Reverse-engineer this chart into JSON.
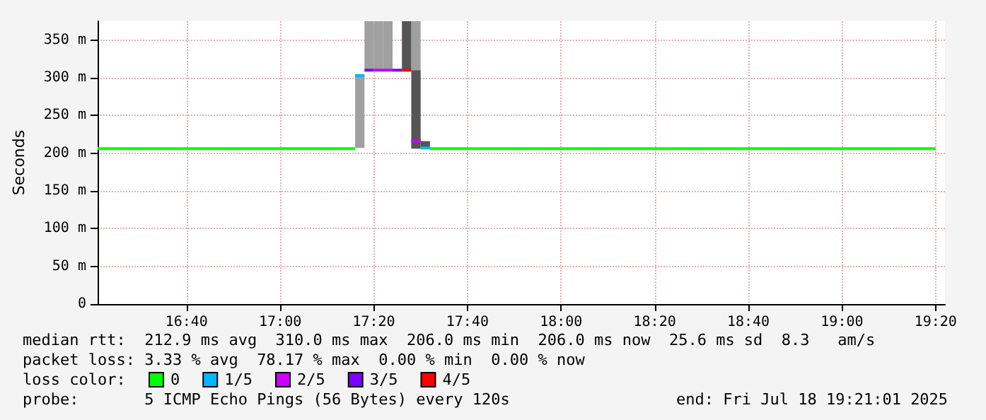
{
  "chart_data": {
    "type": "line",
    "ylabel": "Seconds",
    "legend_title": "loss color:",
    "legend": "bottom",
    "grid": true,
    "marker": "none",
    "xlim": [
      "2025-07-18T16:21",
      "2025-07-18T19:22"
    ],
    "xticks": [
      {
        "value": "2025-07-18T16:40",
        "label": "16:40"
      },
      {
        "value": "2025-07-18T17:00",
        "label": "17:00"
      },
      {
        "value": "2025-07-18T17:20",
        "label": "17:20"
      },
      {
        "value": "2025-07-18T17:40",
        "label": "17:40"
      },
      {
        "value": "2025-07-18T18:00",
        "label": "18:00"
      },
      {
        "value": "2025-07-18T18:20",
        "label": "18:20"
      },
      {
        "value": "2025-07-18T18:40",
        "label": "18:40"
      },
      {
        "value": "2025-07-18T19:00",
        "label": "19:00"
      },
      {
        "value": "2025-07-18T19:20",
        "label": "19:20"
      }
    ],
    "ylim": [
      0,
      375
    ],
    "yticks": [
      0,
      {
        "value": 50,
        "label": "50 m"
      },
      {
        "value": 100,
        "label": "100 m"
      },
      {
        "value": 150,
        "label": "150 m"
      },
      {
        "value": 200,
        "label": "200 m"
      },
      {
        "value": 250,
        "label": "250 m"
      },
      {
        "value": 300,
        "label": "300 m"
      },
      {
        "value": 350,
        "label": "350 m"
      }
    ],
    "series": [
      {
        "type": "bar",
        "color": "#a0a0a0",
        "x": [
          "2025-07-18T17:17",
          "2025-07-18T17:19",
          "2025-07-18T17:21",
          "2025-07-18T17:23",
          "2025-07-18T17:29"
        ],
        "base": [
          207,
          310,
          310,
          310,
          310
        ],
        "values": [
          96,
          65,
          65,
          65,
          65
        ]
      },
      {
        "type": "bar",
        "color": "#555555",
        "x": [
          "2025-07-18T17:27",
          "2025-07-18T17:29",
          "2025-07-18T17:31"
        ],
        "base": [
          310,
          206,
          206
        ],
        "values": [
          65,
          104,
          10
        ]
      },
      {
        "name": "0",
        "color": "#00ff00",
        "x": [
          "2025-07-18T16:21",
          "2025-07-18T17:16",
          "2025-07-18T17:24",
          "2025-07-18T17:32",
          "2025-07-18T19:20"
        ],
        "values": [
          206,
          206,
          null,
          206,
          206
        ]
      },
      {
        "name": "1/5",
        "color": "#00b8ff",
        "x": [
          "2025-07-18T17:16",
          "2025-07-18T17:18",
          "2025-07-18T17:24",
          "2025-07-18T17:30",
          "2025-07-18T17:32"
        ],
        "values": [
          303,
          303,
          null,
          207,
          207
        ]
      },
      {
        "name": "2/5",
        "color": "#cc00ff",
        "x": [
          "2025-07-18T17:20",
          "2025-07-18T17:24",
          "2025-07-18T17:26",
          "2025-07-18T17:28",
          "2025-07-18T17:30"
        ],
        "values": [
          310,
          310,
          null,
          216,
          216
        ]
      },
      {
        "name": "3/5",
        "color": "#7e00ff",
        "x": [
          "2025-07-18T17:18",
          "2025-07-18T17:20",
          "2025-07-18T17:22",
          "2025-07-18T17:24",
          "2025-07-18T17:26"
        ],
        "values": [
          310,
          310,
          null,
          310,
          310
        ]
      },
      {
        "name": "4/5",
        "color": "#ff0000",
        "x": [
          "2025-07-18T17:26",
          "2025-07-18T17:28"
        ],
        "values": [
          310,
          310
        ]
      }
    ],
    "annotations": [
      "median rtt:  212.9 ms avg  310.0 ms max  206.0 ms min  206.0 ms now  25.6 ms sd  8.3   am/s",
      "packet loss: 3.33 % avg  78.17 % max  0.00 % min  0.00 % now",
      "probe:       5 ICMP Echo Pings (56 Bytes) every 120s",
      "end: Fri Jul 18 19:21:01 2025"
    ]
  }
}
